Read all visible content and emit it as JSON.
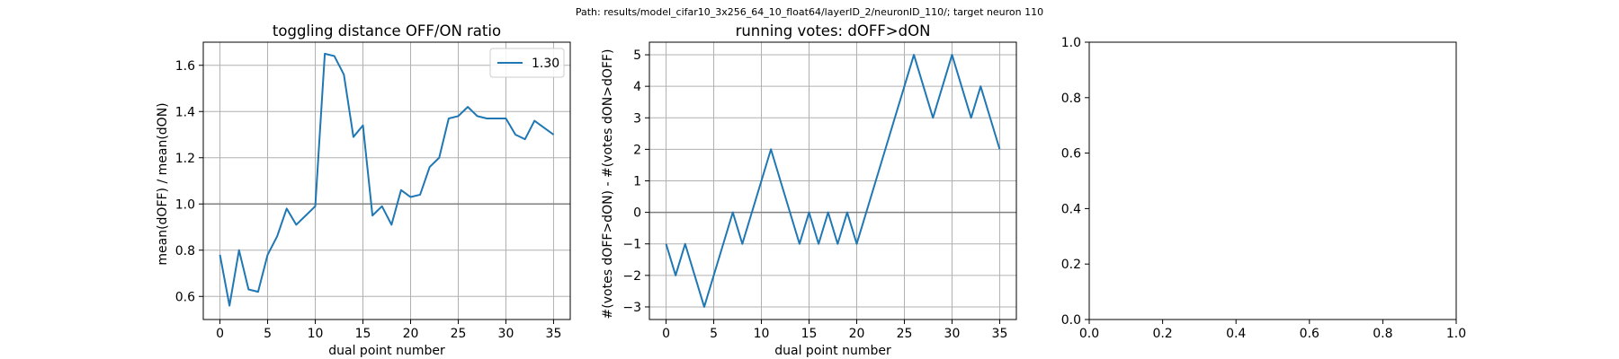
{
  "suptitle": "Path: results/model_cifar10_3x256_64_10_float64/layerID_2/neuronID_110/; target neuron 110",
  "colors": {
    "line": "#1f77b4",
    "grid": "#b0b0b0",
    "reference": "#808080",
    "axes": "#000000"
  },
  "chart_data": [
    {
      "type": "line",
      "title": "toggling distance OFF/ON ratio",
      "xlabel": "dual point number",
      "ylabel": "mean(dOFF) / mean(dON)",
      "xlim": [
        -1.75,
        36.75
      ],
      "ylim": [
        0.5,
        1.7
      ],
      "xticks": [
        0,
        5,
        10,
        15,
        20,
        25,
        30,
        35
      ],
      "yticks": [
        0.6,
        0.8,
        1.0,
        1.2,
        1.4,
        1.6
      ],
      "ytick_labels": [
        "0.6",
        "0.8",
        "1.0",
        "1.2",
        "1.4",
        "1.6"
      ],
      "grid": true,
      "legend": {
        "position": "upper-right",
        "entries": [
          "1.30"
        ]
      },
      "hline": 1.0,
      "series": [
        {
          "name": "1.30",
          "x": [
            0,
            1,
            2,
            3,
            4,
            5,
            6,
            7,
            8,
            9,
            10,
            11,
            12,
            13,
            14,
            15,
            16,
            17,
            18,
            19,
            20,
            21,
            22,
            23,
            24,
            25,
            26,
            27,
            28,
            29,
            30,
            31,
            32,
            33,
            34,
            35
          ],
          "values": [
            0.78,
            0.56,
            0.8,
            0.63,
            0.62,
            0.78,
            0.86,
            0.98,
            0.91,
            0.95,
            0.99,
            1.65,
            1.64,
            1.56,
            1.29,
            1.34,
            0.95,
            0.99,
            0.91,
            1.06,
            1.03,
            1.04,
            1.16,
            1.2,
            1.37,
            1.38,
            1.42,
            1.38,
            1.37,
            1.37,
            1.37,
            1.3,
            1.28,
            1.36,
            1.33,
            1.3
          ]
        }
      ]
    },
    {
      "type": "line",
      "title": "running votes: dOFF>dON",
      "xlabel": "dual point number",
      "ylabel": "#(votes dOFF>dON) - #(votes dON>dOFF)",
      "xlim": [
        -1.75,
        36.75
      ],
      "ylim": [
        -3.4,
        5.4
      ],
      "xticks": [
        0,
        5,
        10,
        15,
        20,
        25,
        30,
        35
      ],
      "yticks": [
        -3,
        -2,
        -1,
        0,
        1,
        2,
        3,
        4,
        5
      ],
      "ytick_labels": [
        "−3",
        "−2",
        "−1",
        "0",
        "1",
        "2",
        "3",
        "4",
        "5"
      ],
      "grid": true,
      "hline": 0,
      "series": [
        {
          "x": [
            0,
            1,
            2,
            3,
            4,
            5,
            6,
            7,
            8,
            9,
            10,
            11,
            12,
            13,
            14,
            15,
            16,
            17,
            18,
            19,
            20,
            21,
            22,
            23,
            24,
            25,
            26,
            27,
            28,
            29,
            30,
            31,
            32,
            33,
            34,
            35
          ],
          "values": [
            -1,
            -2,
            -1,
            -2,
            -3,
            -2,
            -1,
            0,
            -1,
            0,
            1,
            2,
            1,
            0,
            -1,
            0,
            -1,
            0,
            -1,
            0,
            -1,
            0,
            1,
            2,
            3,
            4,
            5,
            4,
            3,
            4,
            5,
            4,
            3,
            4,
            3,
            2
          ]
        }
      ]
    },
    {
      "type": "line",
      "title": "",
      "xlabel": "",
      "ylabel": "",
      "xlim": [
        0,
        1
      ],
      "ylim": [
        0,
        1
      ],
      "xticks": [
        0,
        0.2,
        0.4,
        0.6,
        0.8,
        1.0
      ],
      "yticks": [
        0,
        0.2,
        0.4,
        0.6,
        0.8,
        1.0
      ],
      "xtick_labels": [
        "0.0",
        "0.2",
        "0.4",
        "0.6",
        "0.8",
        "1.0"
      ],
      "ytick_labels": [
        "0.0",
        "0.2",
        "0.4",
        "0.6",
        "0.8",
        "1.0"
      ],
      "grid": false,
      "series": []
    }
  ]
}
